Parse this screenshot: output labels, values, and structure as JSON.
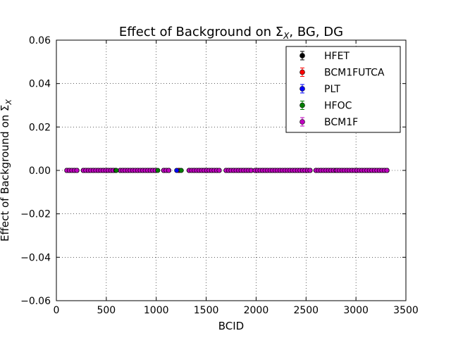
{
  "chart_data": {
    "type": "scatter",
    "title": "Effect of Background on Σ",
    "title_sub": "X",
    "title_suffix": ", BG, DG",
    "xlabel": "BCID",
    "ylabel": "Effect of Background on Σ",
    "ylabel_sub": "X",
    "xlim": [
      0,
      3500
    ],
    "ylim": [
      -0.06,
      0.06
    ],
    "xticks": [
      0,
      500,
      1000,
      1500,
      2000,
      2500,
      3000,
      3500
    ],
    "yticks": [
      0.06,
      0.04,
      0.02,
      0.0,
      -0.02,
      -0.04,
      -0.06
    ],
    "xtick_labels": [
      "0",
      "500",
      "1000",
      "1500",
      "2000",
      "2500",
      "3000",
      "3500"
    ],
    "ytick_labels": [
      "0.06",
      "0.04",
      "0.02",
      "0.00",
      "−0.02",
      "−0.04",
      "−0.06"
    ],
    "grid": true,
    "legend_position": "top-right",
    "x_segments": [
      [
        105,
        225
      ],
      [
        270,
        600
      ],
      [
        640,
        1000
      ],
      [
        1075,
        1140
      ],
      [
        1330,
        1650
      ],
      [
        1700,
        1950
      ],
      [
        1990,
        2560
      ],
      [
        2600,
        2800
      ],
      [
        2810,
        3310
      ]
    ],
    "x_step": 25,
    "y_value": 0.0,
    "series": [
      {
        "name": "HFET",
        "color": "#000000",
        "highlight_x": [
          1230
        ]
      },
      {
        "name": "BCM1FUTCA",
        "color": "#ff0000",
        "highlight_x": [
          1225
        ]
      },
      {
        "name": "PLT",
        "color": "#0000ff",
        "highlight_x": [
          1205
        ]
      },
      {
        "name": "HFOC",
        "color": "#007f00",
        "highlight_x": [
          600,
          1015,
          1250
        ]
      },
      {
        "name": "BCM1F",
        "color": "#bf00bf",
        "highlight_x": []
      }
    ]
  }
}
